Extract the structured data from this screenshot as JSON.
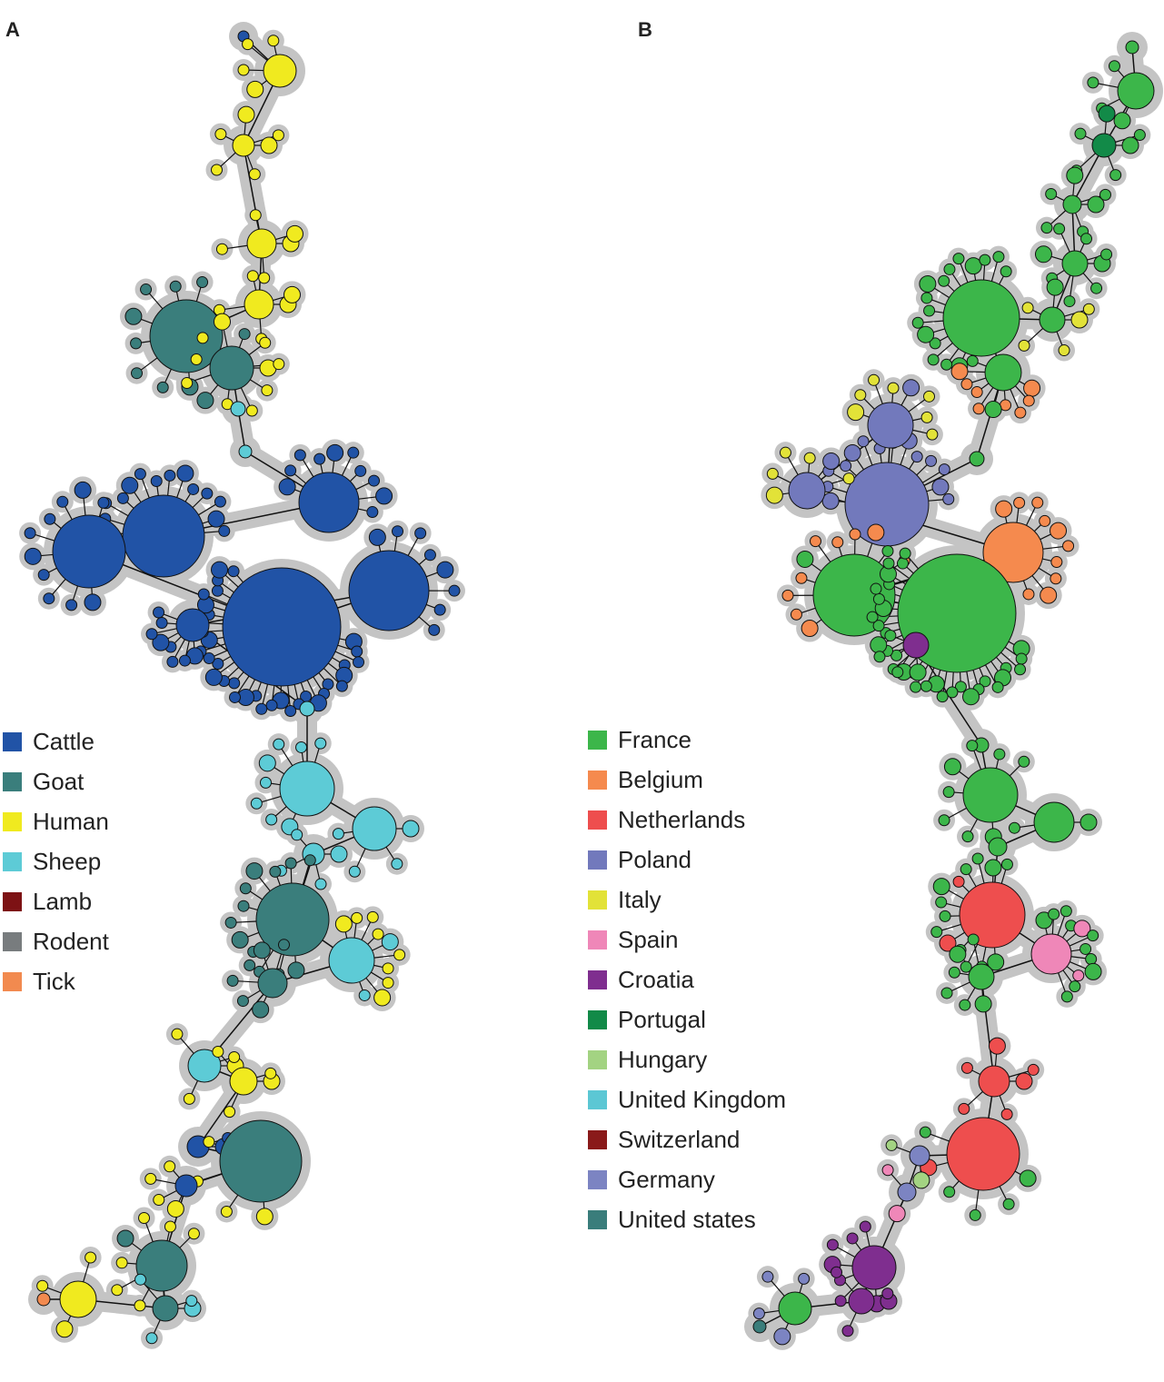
{
  "panels": [
    {
      "label": "A",
      "legend": [
        {
          "name": "Cattle",
          "color": "#2153a6"
        },
        {
          "name": "Goat",
          "color": "#3a7e7c"
        },
        {
          "name": "Human",
          "color": "#f0ea1f"
        },
        {
          "name": "Sheep",
          "color": "#5dcbd6"
        },
        {
          "name": "Lamb",
          "color": "#7d1214"
        },
        {
          "name": "Rodent",
          "color": "#787c7e"
        },
        {
          "name": "Tick",
          "color": "#f28a4f"
        }
      ]
    },
    {
      "label": "B",
      "legend": [
        {
          "name": "France",
          "color": "#3cb64a"
        },
        {
          "name": "Belgium",
          "color": "#f58a4e"
        },
        {
          "name": "Netherlands",
          "color": "#ee4e4e"
        },
        {
          "name": "Poland",
          "color": "#7279bc"
        },
        {
          "name": "Italy",
          "color": "#e2e238"
        },
        {
          "name": "Spain",
          "color": "#ef87b8"
        },
        {
          "name": "Croatia",
          "color": "#7f2e8f"
        },
        {
          "name": "Portugal",
          "color": "#128a48"
        },
        {
          "name": "Hungary",
          "color": "#a3d382"
        },
        {
          "name": "United Kingdom",
          "color": "#5cc7d4"
        },
        {
          "name": "Switzerland",
          "color": "#8a1a1a"
        },
        {
          "name": "Germany",
          "color": "#7c84c2"
        },
        {
          "name": "United states",
          "color": "#3a7d7b"
        }
      ]
    }
  ]
}
